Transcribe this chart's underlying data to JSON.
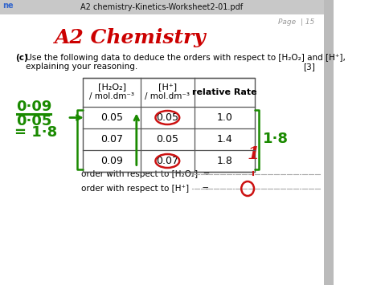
{
  "title_bar_text": "A2 chemistry-Kinetics-Worksheet2-01.pdf",
  "page_text": "Page  | 15",
  "heading": "A2 Chemistry",
  "heading_color": "#cc0000",
  "question_bold": "(c)",
  "question_rest": " Use the following data to deduce the orders with respect to [H₂O₂] and [H⁺],",
  "question_line2": "    explaining your reasoning.",
  "marks": "[3]",
  "col1_header_line1": "[H₂O₂]",
  "col1_header_line2": "/ mol.dm⁻³",
  "col2_header_line1": "[H⁺]",
  "col2_header_line2": "/ mol.dm⁻³",
  "col3_header": "relative Rate",
  "rows": [
    [
      "0.05",
      "0.05",
      "1.0"
    ],
    [
      "0.07",
      "0.05",
      "1.4"
    ],
    [
      "0.09",
      "0.07",
      "1.8"
    ]
  ],
  "order1_label": "order with respect to [H₂O₂]  =",
  "order2_label": "order with respect to [H⁺]     =",
  "bg_color": "#ffffff",
  "green_color": "#1a8a00",
  "red_color": "#cc1111",
  "border_color": "#555555",
  "titlebar_color": "#c8c8c8",
  "tab_color": "#3366cc"
}
